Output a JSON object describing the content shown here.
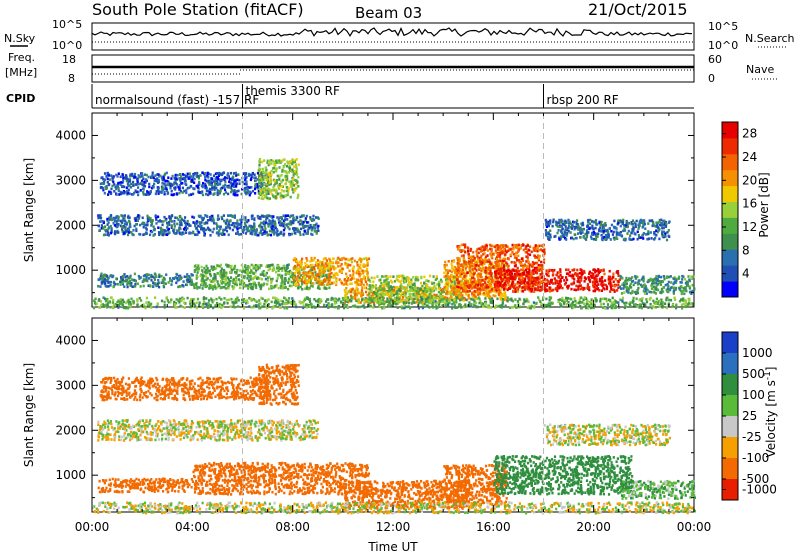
{
  "header": {
    "station": "South Pole Station (fitACF)",
    "beam": "Beam 03",
    "date": "21/Oct/2015"
  },
  "top_panels": {
    "nsky_label": "N.Sky",
    "nsearch_label": "N.Search",
    "nsky_ticks": [
      "10^5",
      "10^0"
    ],
    "nsearch_ticks": [
      "10^5",
      "10^0"
    ],
    "freq_label_1": "Freq.",
    "freq_label_2": "[MHz]",
    "freq_ticks": [
      "18",
      "8"
    ],
    "nave_label": "Nave",
    "nave_ticks": [
      "60",
      "0"
    ],
    "cpid_label": "CPID",
    "cpid_segments": [
      {
        "label": "normalsound (fast) -157 RF",
        "start_hour": 0,
        "end_hour": 6
      },
      {
        "label": "themis 3300 RF",
        "start_hour": 6,
        "end_hour": 18
      },
      {
        "label": "rbsp 200 RF",
        "start_hour": 18,
        "end_hour": 24
      }
    ]
  },
  "chart_data": [
    {
      "type": "heatmap",
      "title": "Power",
      "xlabel": "Time UT",
      "ylabel": "Slant Range [km]",
      "x_ticks": [
        "00:00",
        "04:00",
        "08:00",
        "12:00",
        "16:00",
        "20:00",
        "00:00"
      ],
      "x_range_hours": [
        0,
        24
      ],
      "y_ticks": [
        1000,
        2000,
        3000,
        4000
      ],
      "ylim": [
        180,
        4500
      ],
      "colorbar": {
        "label": "Power [dB]",
        "ticks": [
          "4",
          "8",
          "12",
          "16",
          "20",
          "24",
          "28"
        ],
        "range": [
          0,
          30
        ],
        "colors": [
          "#0000ff",
          "#1f4fb4",
          "#2a6fb0",
          "#3f8f4f",
          "#4faa3f",
          "#98cf3a",
          "#f0c800",
          "#f59000",
          "#f36400",
          "#ee2a00",
          "#e60000"
        ]
      },
      "regions": [
        {
          "h0": 0.2,
          "h1": 9.0,
          "r0": 1800,
          "r1": 2250,
          "power": 6
        },
        {
          "h0": 0.3,
          "h1": 7.0,
          "r0": 2700,
          "r1": 3200,
          "power": 5
        },
        {
          "h0": 6.6,
          "h1": 8.2,
          "r0": 2600,
          "r1": 3500,
          "power": 14
        },
        {
          "h0": 0.2,
          "h1": 4.0,
          "r0": 650,
          "r1": 950,
          "power": 8
        },
        {
          "h0": 4.0,
          "h1": 9.5,
          "r0": 600,
          "r1": 1150,
          "power": 12
        },
        {
          "h0": 8.0,
          "h1": 11.0,
          "r0": 700,
          "r1": 1300,
          "power": 20
        },
        {
          "h0": 10.0,
          "h1": 14.0,
          "r0": 280,
          "r1": 650,
          "power": 20
        },
        {
          "h0": 11.0,
          "h1": 14.8,
          "r0": 300,
          "r1": 900,
          "power": 14
        },
        {
          "h0": 14.0,
          "h1": 16.5,
          "r0": 350,
          "r1": 1250,
          "power": 20
        },
        {
          "h0": 14.5,
          "h1": 18.0,
          "r0": 550,
          "r1": 1600,
          "power": 24
        },
        {
          "h0": 16.0,
          "h1": 21.0,
          "r0": 550,
          "r1": 1050,
          "power": 28
        },
        {
          "h0": 18.0,
          "h1": 23.0,
          "r0": 1700,
          "r1": 2150,
          "power": 6
        },
        {
          "h0": 21.0,
          "h1": 24.0,
          "r0": 500,
          "r1": 900,
          "power": 10
        },
        {
          "h0": 0.0,
          "h1": 24.0,
          "r0": 180,
          "r1": 420,
          "power": 12
        }
      ]
    },
    {
      "type": "heatmap",
      "title": "Velocity",
      "xlabel": "Time UT",
      "ylabel": "Slant Range [km]",
      "x_ticks": [
        "00:00",
        "04:00",
        "08:00",
        "12:00",
        "16:00",
        "20:00",
        "00:00"
      ],
      "x_range_hours": [
        0,
        24
      ],
      "y_ticks": [
        1000,
        2000,
        3000,
        4000
      ],
      "ylim": [
        180,
        4500
      ],
      "colorbar": {
        "label": "Velocity [m s^-1]",
        "ticks": [
          "1000",
          "500",
          "100",
          "25",
          "-25",
          "-100",
          "-500",
          "-1000"
        ],
        "range": [
          -1200,
          1200
        ],
        "colors": [
          "#1a3fc8",
          "#2b6fbf",
          "#2f8f3f",
          "#5aba3a",
          "#c8c8c8",
          "#f5a000",
          "#f36a00",
          "#e81e00"
        ]
      },
      "regions": [
        {
          "h0": 0.2,
          "h1": 9.0,
          "r0": 1800,
          "r1": 2250,
          "velocity": 0
        },
        {
          "h0": 0.3,
          "h1": 7.0,
          "r0": 2700,
          "r1": 3200,
          "velocity": -200
        },
        {
          "h0": 6.6,
          "h1": 8.2,
          "r0": 2600,
          "r1": 3500,
          "velocity": -300
        },
        {
          "h0": 0.2,
          "h1": 4.0,
          "r0": 650,
          "r1": 950,
          "velocity": -300
        },
        {
          "h0": 4.0,
          "h1": 11.0,
          "r0": 600,
          "r1": 1300,
          "velocity": -350
        },
        {
          "h0": 10.0,
          "h1": 15.0,
          "r0": 280,
          "r1": 900,
          "velocity": -300
        },
        {
          "h0": 14.0,
          "h1": 16.5,
          "r0": 350,
          "r1": 1250,
          "velocity": -250
        },
        {
          "h0": 16.0,
          "h1": 21.5,
          "r0": 600,
          "r1": 1450,
          "velocity": 400
        },
        {
          "h0": 18.0,
          "h1": 23.0,
          "r0": 1700,
          "r1": 2150,
          "velocity": 0
        },
        {
          "h0": 21.0,
          "h1": 24.0,
          "r0": 500,
          "r1": 900,
          "velocity": 80
        },
        {
          "h0": 0.0,
          "h1": 24.0,
          "r0": 180,
          "r1": 420,
          "velocity": 0
        }
      ]
    }
  ]
}
